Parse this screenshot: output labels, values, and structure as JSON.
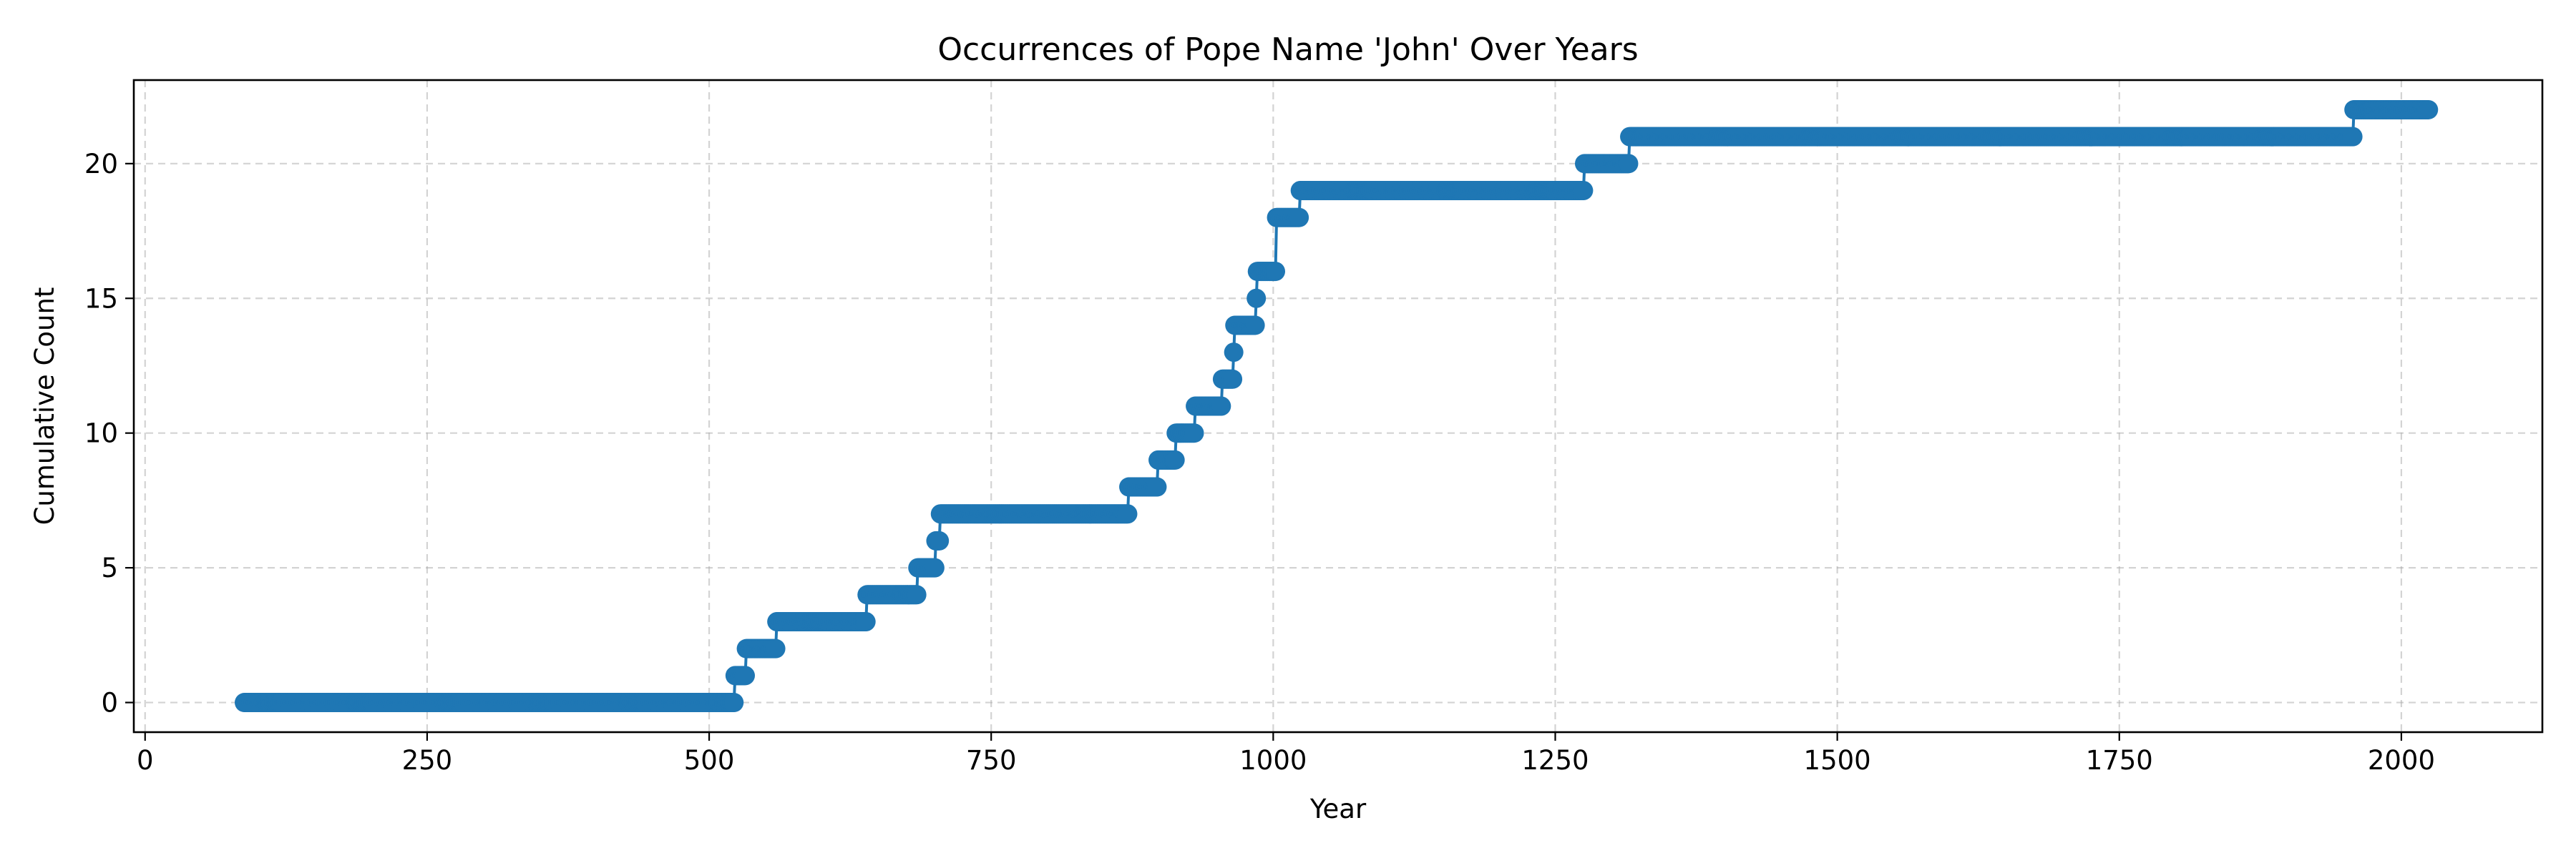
{
  "chart_data": {
    "type": "line",
    "title": "Occurrences of Pope Name 'John' Over Years",
    "xlabel": "Year",
    "ylabel": "Cumulative Count",
    "xlim": [
      -10,
      2125
    ],
    "ylim": [
      -1.1,
      23.1
    ],
    "xticks": [
      0,
      250,
      500,
      750,
      1000,
      1250,
      1500,
      1750,
      2000
    ],
    "yticks": [
      0,
      5,
      10,
      15,
      20
    ],
    "grid": true,
    "color": "#1f77b4",
    "marker": "circle",
    "start_year": 88,
    "end_year": 2024,
    "steps": [
      {
        "year": 88,
        "count": 0
      },
      {
        "year": 523,
        "count": 1
      },
      {
        "year": 533,
        "count": 2
      },
      {
        "year": 560,
        "count": 3
      },
      {
        "year": 640,
        "count": 4
      },
      {
        "year": 685,
        "count": 5
      },
      {
        "year": 701,
        "count": 6
      },
      {
        "year": 705,
        "count": 7
      },
      {
        "year": 872,
        "count": 8
      },
      {
        "year": 898,
        "count": 9
      },
      {
        "year": 914,
        "count": 10
      },
      {
        "year": 931,
        "count": 11
      },
      {
        "year": 955,
        "count": 12
      },
      {
        "year": 965,
        "count": 13
      },
      {
        "year": 966,
        "count": 14
      },
      {
        "year": 985,
        "count": 15
      },
      {
        "year": 986,
        "count": 16
      },
      {
        "year": 1003,
        "count": 18
      },
      {
        "year": 1024,
        "count": 19
      },
      {
        "year": 1276,
        "count": 20
      },
      {
        "year": 1316,
        "count": 21
      },
      {
        "year": 1958,
        "count": 22
      }
    ]
  }
}
